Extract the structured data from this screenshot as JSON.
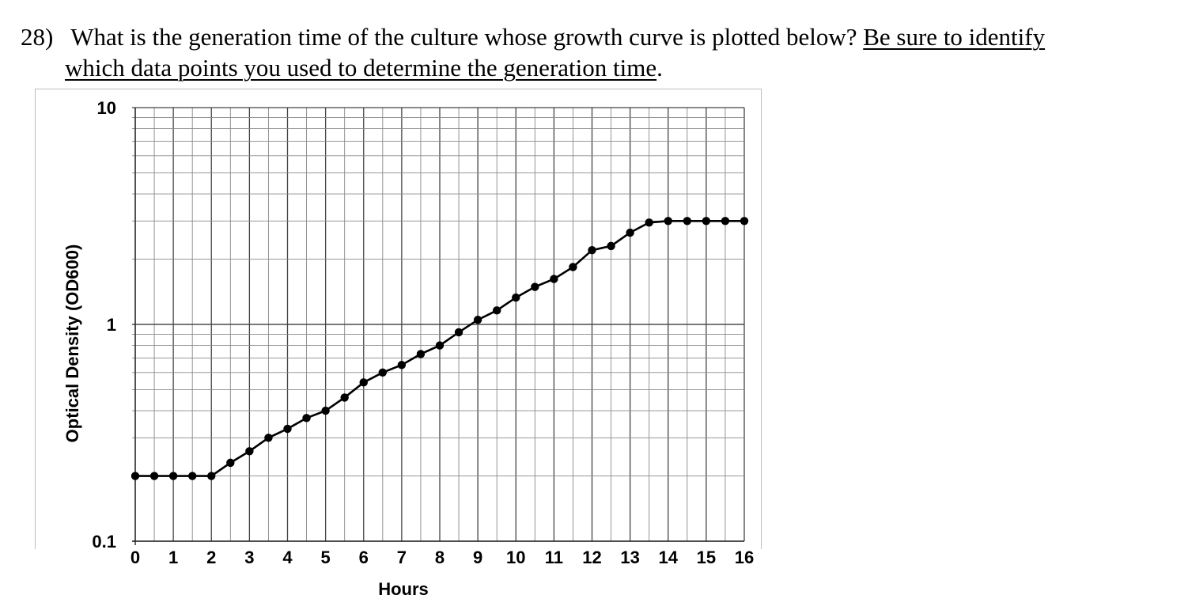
{
  "question": {
    "number": "28)",
    "text_plain": " What is the generation time of the culture whose growth curve is plotted below? ",
    "text_underlined_1": "Be sure to identify",
    "text_underlined_2": "which data points you used to determine the generation time",
    "text_end": "."
  },
  "chart_data": {
    "type": "line",
    "title": "",
    "xlabel": "Hours",
    "ylabel": "Optical Density (OD600)",
    "yscale": "log",
    "ylim": [
      0.1,
      10
    ],
    "xlim": [
      0,
      16
    ],
    "x_tick_labels": [
      "0",
      "1",
      "2",
      "3",
      "4",
      "5",
      "6",
      "7",
      "8",
      "9",
      "10",
      "11",
      "12",
      "13",
      "14",
      "15",
      "16"
    ],
    "y_tick_labels": [
      "0.1",
      "1",
      "10"
    ],
    "grid": true,
    "series": [
      {
        "color": "#000000",
        "marker": "circle",
        "x": [
          0,
          0.5,
          1,
          1.5,
          2,
          2.5,
          3,
          3.5,
          4,
          4.5,
          5,
          5.5,
          6,
          6.5,
          7,
          7.5,
          8,
          8.5,
          9,
          9.5,
          10,
          10.5,
          11,
          11.5,
          12,
          12.5,
          13,
          13.5,
          14,
          14.5,
          15,
          15.5,
          16
        ],
        "y": [
          0.2,
          0.2,
          0.2,
          0.2,
          0.2,
          0.23,
          0.26,
          0.3,
          0.33,
          0.37,
          0.4,
          0.46,
          0.54,
          0.6,
          0.65,
          0.73,
          0.8,
          0.92,
          1.05,
          1.16,
          1.33,
          1.49,
          1.62,
          1.84,
          2.2,
          2.3,
          2.65,
          2.95,
          3.0,
          3.0,
          3.0,
          3.0,
          3.0
        ]
      }
    ]
  }
}
